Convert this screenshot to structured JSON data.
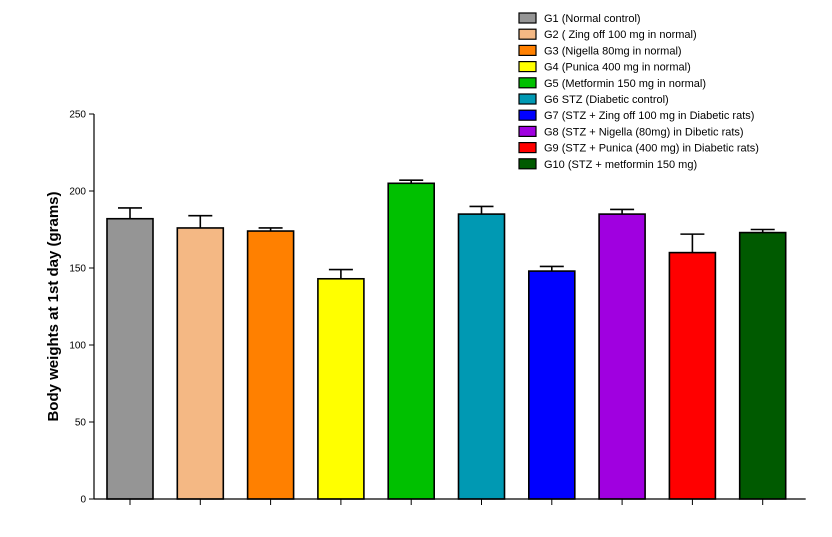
{
  "chart_data": {
    "type": "bar",
    "title": "",
    "xlabel": "",
    "ylabel": "Body weights at 1st day (grams)",
    "ylim": [
      0,
      250
    ],
    "yticks": [
      0,
      50,
      100,
      150,
      200,
      250
    ],
    "grid": false,
    "legend_position": "top-right",
    "categories": [
      "G1 (Normal control)",
      "G2 ( Zing off 100 mg in normal)",
      "G3 (Nigella 80mg in normal)",
      "G4 (Punica 400 mg in normal)",
      "G5 (Metformin 150 mg in normal)",
      "G6 STZ (Diabetic control)",
      "G7 (STZ + Zing off 100 mg in Diabetic rats)",
      "G8 (STZ + Nigella (80mg) in Dibetic rats)",
      "G9 (STZ + Punica (400 mg) in Diabetic rats)",
      "G10 (STZ + metformin 150 mg)"
    ],
    "values": [
      182,
      176,
      174,
      143,
      205,
      185,
      148,
      185,
      160,
      173
    ],
    "errors": [
      7,
      8,
      2,
      6,
      2,
      5,
      3,
      3,
      12,
      2
    ],
    "colors": [
      "#959595",
      "#f4b884",
      "#ff8000",
      "#ffff00",
      "#00c000",
      "#0099b3",
      "#0000ff",
      "#a000e0",
      "#ff0000",
      "#005a00"
    ]
  }
}
